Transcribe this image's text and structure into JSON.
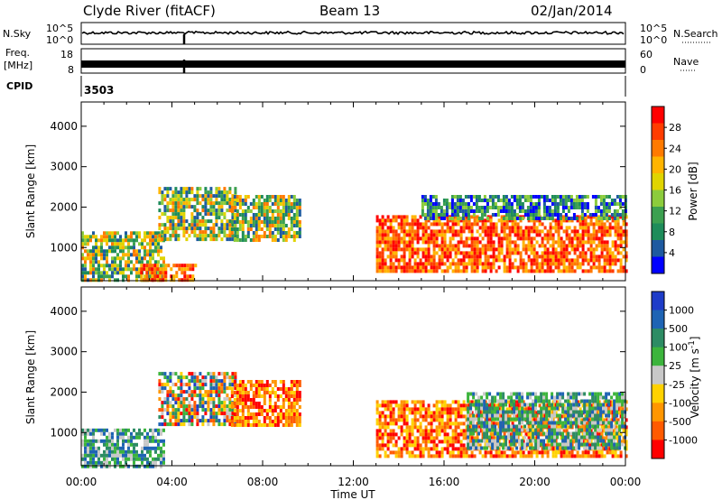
{
  "header": {
    "station": "Clyde River (fitACF)",
    "beam": "Beam 13",
    "date": "02/Jan/2014"
  },
  "top_panels": {
    "nsky_label": "N.Sky",
    "nsky_ticks": [
      "10^5",
      "10^0"
    ],
    "nsearch_label": "N.Search",
    "nsearch_ticks": [
      "10^5",
      "10^0"
    ],
    "freq_label_1": "Freq.",
    "freq_label_2": "[MHz]",
    "freq_ticks": [
      "18",
      "8"
    ],
    "nave_label": "Nave",
    "nave_ticks": [
      "60",
      "0"
    ],
    "cpid_label": "CPID",
    "cpid_value": "3503"
  },
  "chart_data": [
    {
      "type": "heatmap",
      "panel": "power",
      "ylabel": "Slant Range [km]",
      "xlabel": "Time UT",
      "yticks": [
        1000,
        2000,
        3000,
        4000
      ],
      "ylim": [
        180,
        4600
      ],
      "xticks": [
        "00:00",
        "04:00",
        "08:00",
        "12:00",
        "16:00",
        "20:00",
        "00:00"
      ],
      "xlim": [
        0,
        24
      ],
      "colorbar": {
        "label": "Power [dB]",
        "ticks": [
          "28",
          "24",
          "20",
          "16",
          "12",
          "8",
          "4"
        ],
        "colors": [
          "#ff0000",
          "#ff3c00",
          "#ff7a00",
          "#ffb400",
          "#e0d400",
          "#8ccc3c",
          "#3ca050",
          "#1e8c5a",
          "#1e5aa0",
          "#0000ff"
        ]
      },
      "regions": [
        {
          "t0": 0.0,
          "t1": 3.6,
          "r0": 200,
          "r1": 1400,
          "level": "mid"
        },
        {
          "t0": 2.6,
          "t1": 5.0,
          "r0": 200,
          "r1": 600,
          "level": "high"
        },
        {
          "t0": 3.4,
          "t1": 6.8,
          "r0": 1200,
          "r1": 2500,
          "level": "mid"
        },
        {
          "t0": 6.6,
          "t1": 9.6,
          "r0": 1200,
          "r1": 2300,
          "level": "mid"
        },
        {
          "t0": 13.0,
          "t1": 24.0,
          "r0": 400,
          "r1": 1800,
          "level": "high"
        },
        {
          "t0": 15.0,
          "t1": 24.0,
          "r0": 1700,
          "r1": 2300,
          "level": "low"
        }
      ]
    },
    {
      "type": "heatmap",
      "panel": "velocity",
      "ylabel": "Slant Range [km]",
      "xlabel": "Time UT",
      "yticks": [
        1000,
        2000,
        3000,
        4000
      ],
      "ylim": [
        180,
        4600
      ],
      "xticks": [
        "00:00",
        "04:00",
        "08:00",
        "12:00",
        "16:00",
        "20:00",
        "00:00"
      ],
      "xlim": [
        0,
        24
      ],
      "colorbar": {
        "label": "Velocity [m s-1]",
        "ticks": [
          "1000",
          "500",
          "100",
          "25",
          "-25",
          "-100",
          "-500",
          "-1000"
        ],
        "colors": [
          "#1e3cc8",
          "#1e64b4",
          "#2d8c64",
          "#3cb43c",
          "#c8c8c8",
          "#ffd200",
          "#ff9600",
          "#ff5a00",
          "#ff0000"
        ]
      },
      "regions": [
        {
          "t0": 0.0,
          "t1": 3.6,
          "r0": 200,
          "r1": 1100,
          "level": "pos"
        },
        {
          "t0": 3.4,
          "t1": 6.8,
          "r0": 1200,
          "r1": 2500,
          "level": "mix"
        },
        {
          "t0": 6.6,
          "t1": 9.6,
          "r0": 1200,
          "r1": 2300,
          "level": "neg"
        },
        {
          "t0": 13.0,
          "t1": 24.0,
          "r0": 400,
          "r1": 1800,
          "level": "neg"
        },
        {
          "t0": 17.0,
          "t1": 24.0,
          "r0": 600,
          "r1": 2000,
          "level": "pos"
        }
      ]
    }
  ]
}
